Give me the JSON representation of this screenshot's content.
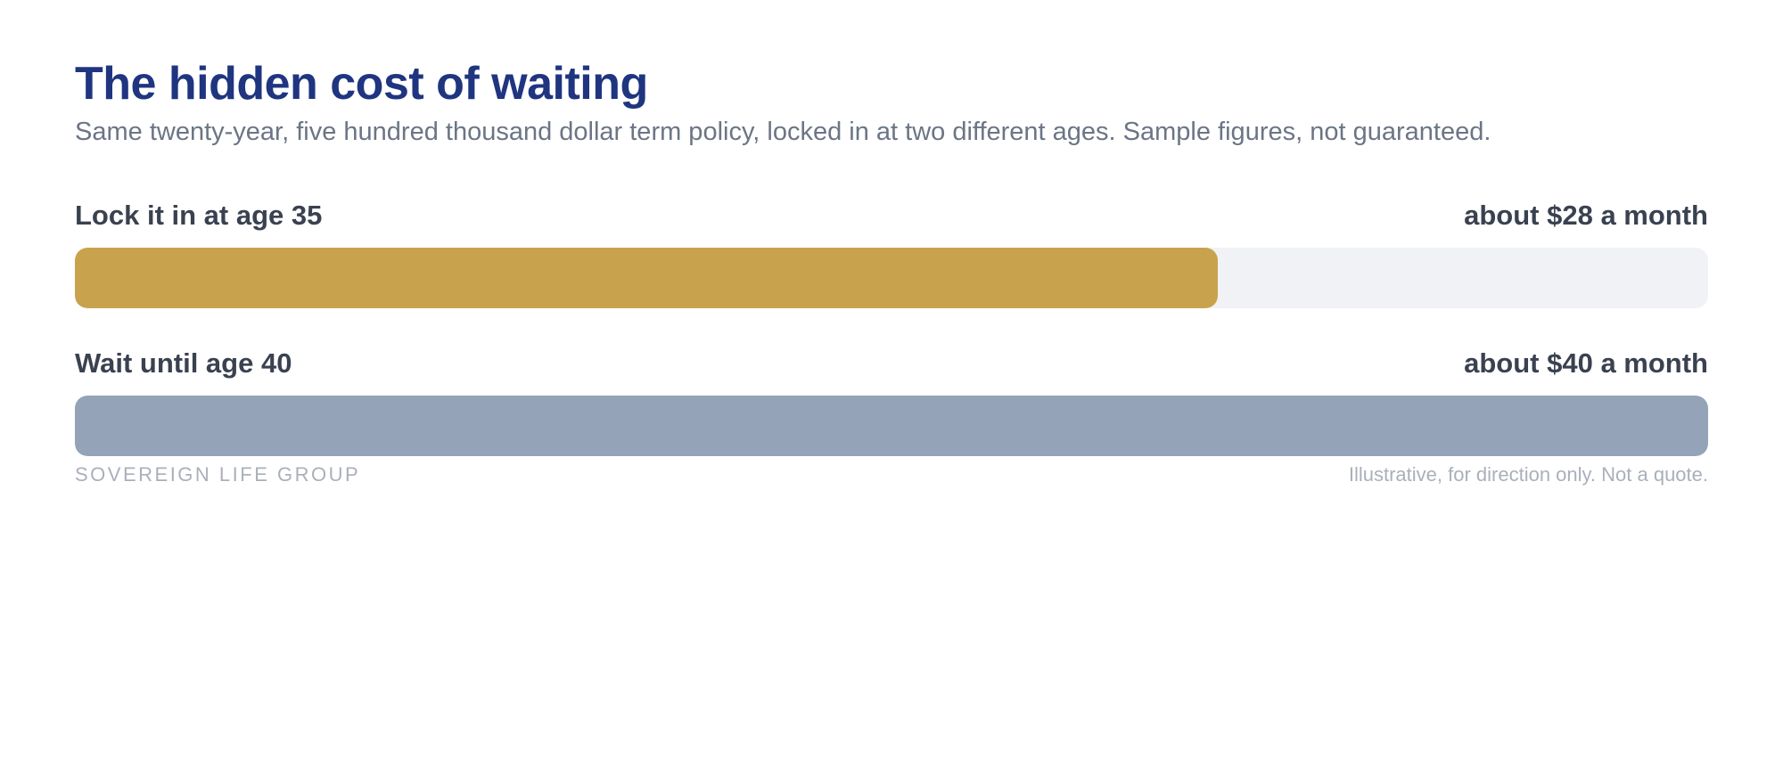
{
  "header": {
    "title": "The hidden cost of waiting",
    "subtitle": "Same twenty-year, five hundred thousand dollar term policy, locked in at two different ages. Sample figures, not guaranteed."
  },
  "rows": [
    {
      "label": "Lock it in at age 35",
      "value_text": "about $28 a month"
    },
    {
      "label": "Wait until age 40",
      "value_text": "about $40 a month"
    }
  ],
  "footer": {
    "brand": "SOVEREIGN LIFE GROUP",
    "note": "Illustrative, for direction only. Not a quote."
  },
  "colors": {
    "title": "#1f3580",
    "bar_age_35": "#c9a24d",
    "bar_age_40": "#94a3b8",
    "track": "#f1f2f5"
  },
  "chart_data": {
    "type": "bar",
    "orientation": "horizontal",
    "categories": [
      "Lock it in at age 35",
      "Wait until age 40"
    ],
    "values": [
      28,
      40
    ],
    "title": "The hidden cost of waiting",
    "subtitle": "Same twenty-year, five hundred thousand dollar term policy, locked in at two different ages. Sample figures, not guaranteed.",
    "xlim": [
      0,
      40
    ],
    "grid": false
  }
}
